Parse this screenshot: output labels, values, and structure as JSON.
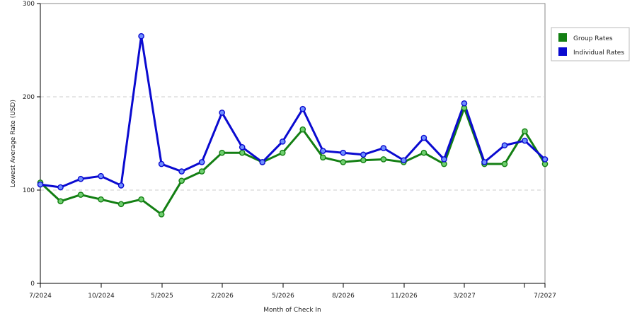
{
  "chart_data": {
    "type": "line",
    "title": "",
    "xlabel": "Month of Check In",
    "ylabel": "Lowest Average Rate (USD)",
    "ylim": [
      0,
      300
    ],
    "yticks": [
      0,
      100,
      200,
      300
    ],
    "grid": "horizontal dashed",
    "legend_position": "right",
    "x_tick_labels": [
      "7/2024",
      "10/2024",
      "5/2025",
      "2/2026",
      "5/2026",
      "8/2026",
      "11/2026",
      "3/2027",
      "",
      "7/2027"
    ],
    "series": [
      {
        "name": "Group Rates",
        "color": "#137f13",
        "values": [
          108,
          88,
          95,
          90,
          85,
          90,
          74,
          110,
          120,
          140,
          140,
          130,
          140,
          165,
          135,
          130,
          132,
          133,
          130,
          140,
          128,
          188,
          128,
          128,
          163,
          128
        ]
      },
      {
        "name": "Individual Rates",
        "color": "#0a0ad0",
        "values": [
          106,
          103,
          112,
          115,
          105,
          265,
          128,
          120,
          130,
          183,
          146,
          130,
          152,
          187,
          142,
          140,
          138,
          145,
          132,
          156,
          133,
          193,
          130,
          148,
          153,
          133
        ]
      }
    ]
  }
}
